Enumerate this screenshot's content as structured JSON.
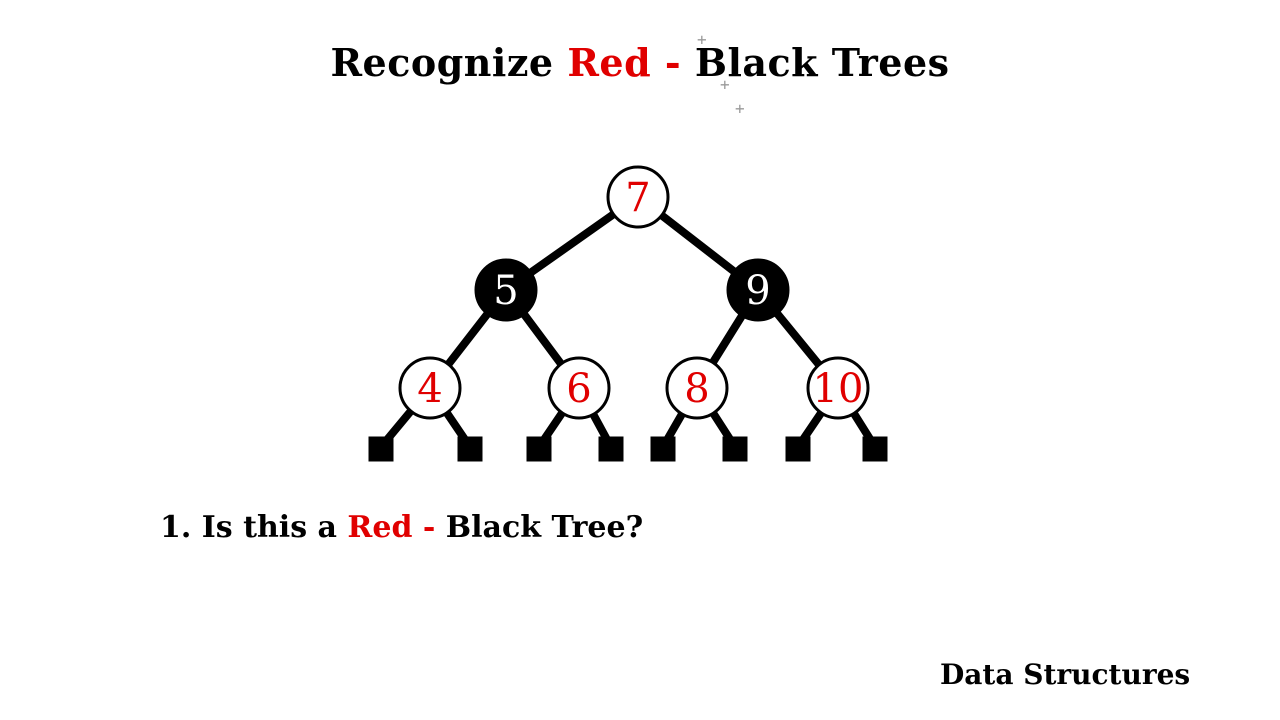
{
  "title": {
    "part1": "Recognize ",
    "red": "Red -",
    "part2": " Black Trees"
  },
  "question": {
    "part1": "1. Is this a ",
    "red": "Red -",
    "part2": " Black Tree?"
  },
  "footer": "Data Structures",
  "colors": {
    "red": "#e00000",
    "black": "#000000",
    "white": "#ffffff"
  },
  "tree": {
    "nodes": [
      {
        "id": "n7",
        "label": "7",
        "color": "red"
      },
      {
        "id": "n5",
        "label": "5",
        "color": "black"
      },
      {
        "id": "n9",
        "label": "9",
        "color": "black"
      },
      {
        "id": "n4",
        "label": "4",
        "color": "red"
      },
      {
        "id": "n6",
        "label": "6",
        "color": "red"
      },
      {
        "id": "n8",
        "label": "8",
        "color": "red"
      },
      {
        "id": "n10",
        "label": "10",
        "color": "red"
      }
    ],
    "edges": [
      [
        "n7",
        "n5"
      ],
      [
        "n7",
        "n9"
      ],
      [
        "n5",
        "n4"
      ],
      [
        "n5",
        "n6"
      ],
      [
        "n9",
        "n8"
      ],
      [
        "n9",
        "n10"
      ]
    ],
    "leaves": [
      {
        "parent": "n4"
      },
      {
        "parent": "n4"
      },
      {
        "parent": "n6"
      },
      {
        "parent": "n6"
      },
      {
        "parent": "n8"
      },
      {
        "parent": "n8"
      },
      {
        "parent": "n10"
      },
      {
        "parent": "n10"
      }
    ]
  }
}
